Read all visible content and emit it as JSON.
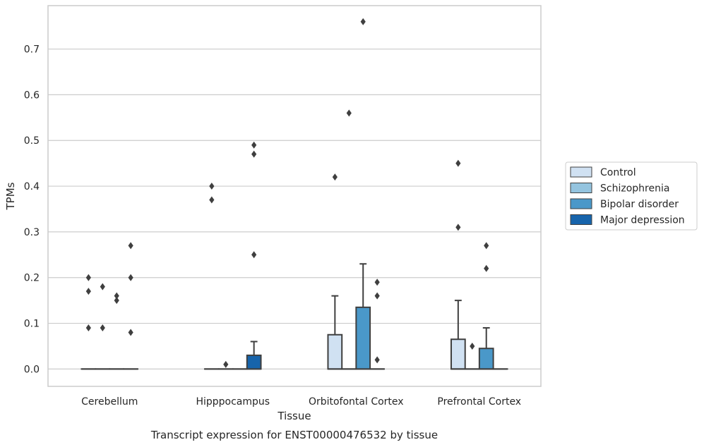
{
  "chart_data": {
    "type": "box",
    "title": "",
    "caption": "Transcript expression for ENST00000476532 by tissue",
    "xlabel": "Tissue",
    "ylabel": "TPMs",
    "ylim": [
      -0.038,
      0.795
    ],
    "yticks": [
      0.0,
      0.1,
      0.2,
      0.3,
      0.4,
      0.5,
      0.6,
      0.7
    ],
    "ytick_labels": [
      "0.0",
      "0.1",
      "0.2",
      "0.3",
      "0.4",
      "0.5",
      "0.6",
      "0.7"
    ],
    "grid": "horizontal",
    "legend_position": "right",
    "categories": [
      "Cerebellum",
      "Hipppocampus",
      "Orbitofontal Cortex",
      "Prefrontal Cortex"
    ],
    "series": [
      {
        "name": "Control",
        "color": "#d0e1f2",
        "boxes": [
          {
            "q1": 0,
            "median": 0,
            "q3": 0,
            "whisker_low": 0,
            "whisker_high": 0,
            "outliers": [
              0.09,
              0.17,
              0.2
            ]
          },
          {
            "q1": 0,
            "median": 0,
            "q3": 0,
            "whisker_low": 0,
            "whisker_high": 0,
            "outliers": [
              0.37,
              0.4
            ]
          },
          {
            "q1": 0,
            "median": 0,
            "q3": 0.075,
            "whisker_low": 0,
            "whisker_high": 0.16,
            "outliers": [
              0.42
            ]
          },
          {
            "q1": 0,
            "median": 0,
            "q3": 0.065,
            "whisker_low": 0,
            "whisker_high": 0.15,
            "outliers": [
              0.31,
              0.45
            ]
          }
        ]
      },
      {
        "name": "Schizophrenia",
        "color": "#94c4df",
        "boxes": [
          {
            "q1": 0,
            "median": 0,
            "q3": 0,
            "whisker_low": 0,
            "whisker_high": 0,
            "outliers": [
              0.09,
              0.18
            ]
          },
          {
            "q1": 0,
            "median": 0,
            "q3": 0,
            "whisker_low": 0,
            "whisker_high": 0,
            "outliers": [
              0.01
            ]
          },
          {
            "q1": 0,
            "median": 0,
            "q3": 0,
            "whisker_low": 0,
            "whisker_high": 0,
            "outliers": [
              0.56
            ]
          },
          {
            "q1": 0,
            "median": 0,
            "q3": 0,
            "whisker_low": 0,
            "whisker_high": 0,
            "outliers": [
              0.05
            ]
          }
        ]
      },
      {
        "name": "Bipolar disorder",
        "color": "#4a98c9",
        "boxes": [
          {
            "q1": 0,
            "median": 0,
            "q3": 0,
            "whisker_low": 0,
            "whisker_high": 0,
            "outliers": [
              0.15,
              0.16
            ]
          },
          {
            "q1": 0,
            "median": 0,
            "q3": 0,
            "whisker_low": 0,
            "whisker_high": 0,
            "outliers": []
          },
          {
            "q1": 0,
            "median": 0,
            "q3": 0.135,
            "whisker_low": 0,
            "whisker_high": 0.23,
            "outliers": [
              0.76
            ]
          },
          {
            "q1": 0,
            "median": 0,
            "q3": 0.045,
            "whisker_low": 0,
            "whisker_high": 0.09,
            "outliers": [
              0.22,
              0.27
            ]
          }
        ]
      },
      {
        "name": "Major depression",
        "color": "#1764ab",
        "boxes": [
          {
            "q1": 0,
            "median": 0,
            "q3": 0,
            "whisker_low": 0,
            "whisker_high": 0,
            "outliers": [
              0.08,
              0.2,
              0.27
            ]
          },
          {
            "q1": 0,
            "median": 0,
            "q3": 0.03,
            "whisker_low": 0,
            "whisker_high": 0.06,
            "outliers": [
              0.25,
              0.47,
              0.49
            ]
          },
          {
            "q1": 0,
            "median": 0,
            "q3": 0,
            "whisker_low": 0,
            "whisker_high": 0,
            "outliers": [
              0.02,
              0.16,
              0.19
            ]
          },
          {
            "q1": 0,
            "median": 0,
            "q3": 0,
            "whisker_low": 0,
            "whisker_high": 0,
            "outliers": []
          }
        ]
      }
    ],
    "colors": {
      "line": "#3f3f3f",
      "grid": "#cccccc",
      "frame": "#cccccc"
    }
  }
}
